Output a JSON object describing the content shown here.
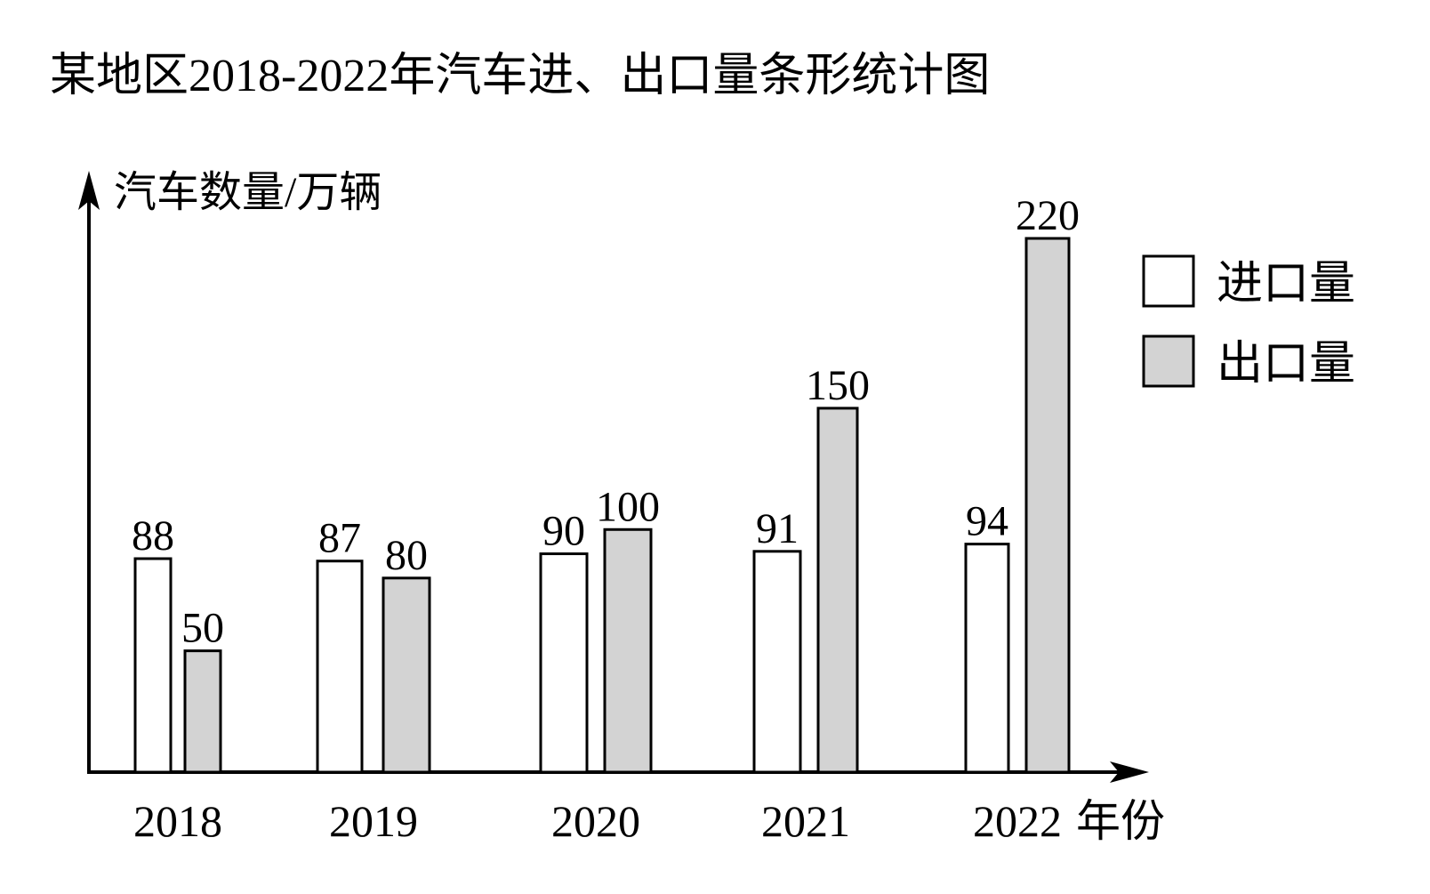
{
  "chart_data": {
    "type": "bar",
    "title": "某地区2018-2022年汽车进、出口量条形统计图",
    "ylabel": "汽车数量/万辆",
    "xlabel": "年份",
    "categories": [
      "2018",
      "2019",
      "2020",
      "2021",
      "2022"
    ],
    "series": [
      {
        "name": "进口量",
        "values": [
          88,
          87,
          90,
          91,
          94
        ],
        "color": "#ffffff"
      },
      {
        "name": "出口量",
        "values": [
          50,
          80,
          100,
          150,
          220
        ],
        "color": "#d3d3d3"
      }
    ],
    "ylim": [
      0,
      240
    ],
    "grid": false,
    "legend_position": "top-right",
    "data_labels": true
  }
}
